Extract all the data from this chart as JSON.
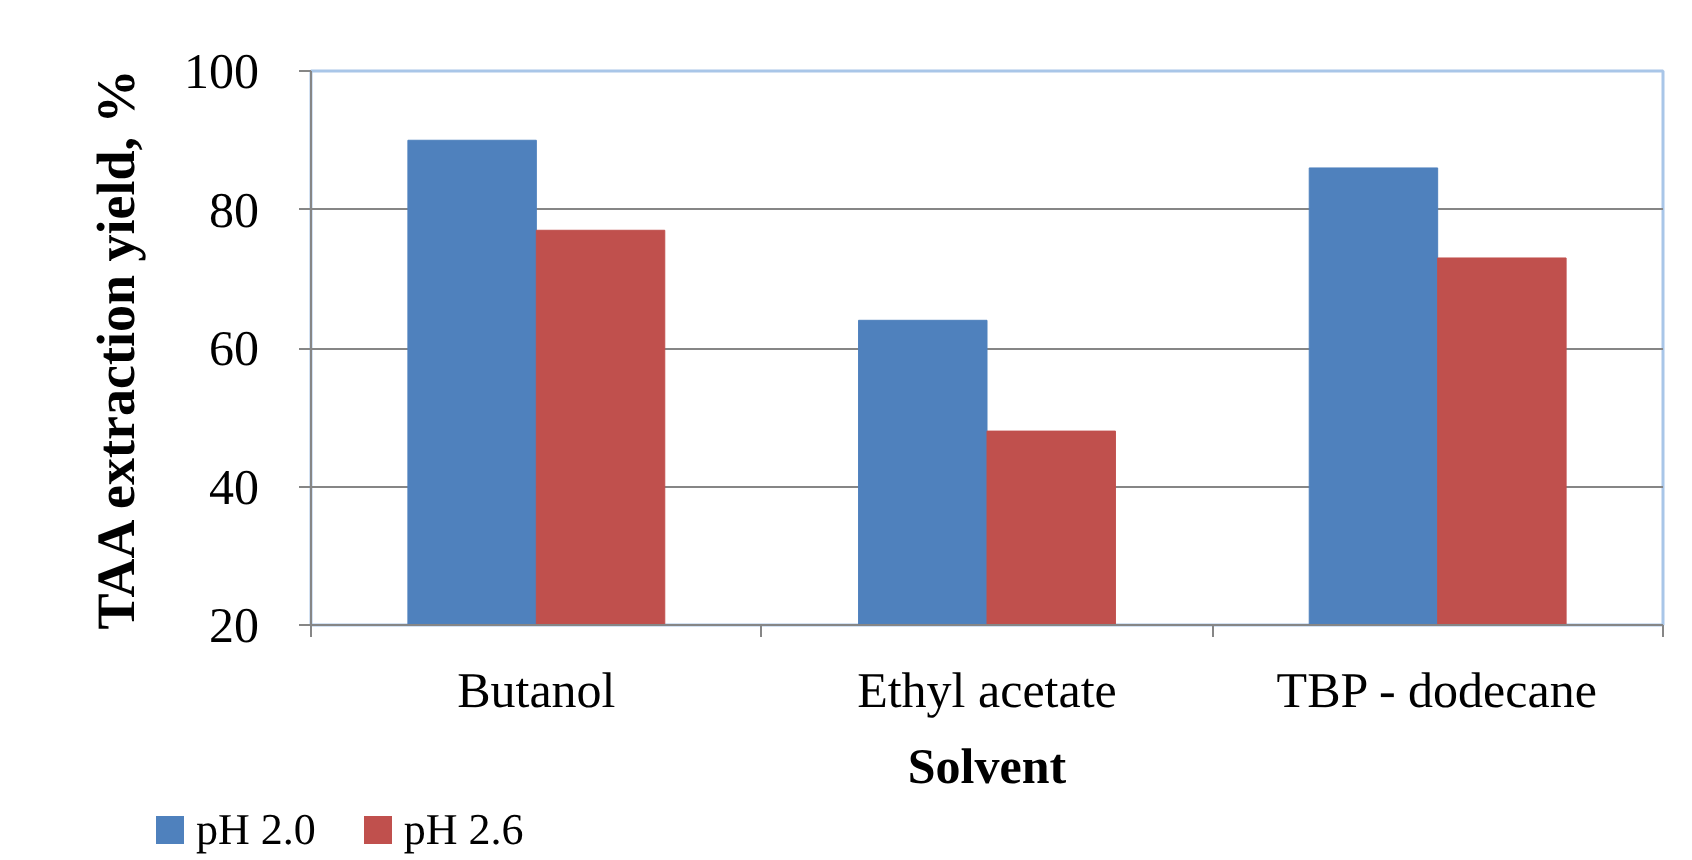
{
  "chart_data": {
    "type": "bar",
    "categories": [
      "Butanol",
      "Ethyl acetate",
      "TBP - dodecane"
    ],
    "series": [
      {
        "name": "pH 2.0",
        "color": "#4f81bd",
        "values": [
          90,
          64,
          86
        ]
      },
      {
        "name": "pH 2.6",
        "color": "#c0504d",
        "values": [
          77,
          48,
          73
        ]
      }
    ],
    "xlabel": "Solvent",
    "ylabel": "TAA extraction yield, %",
    "ylim": [
      20,
      100
    ],
    "yticks": [
      20,
      40,
      60,
      80,
      100
    ],
    "grid": "y",
    "legend": "bottom left"
  }
}
